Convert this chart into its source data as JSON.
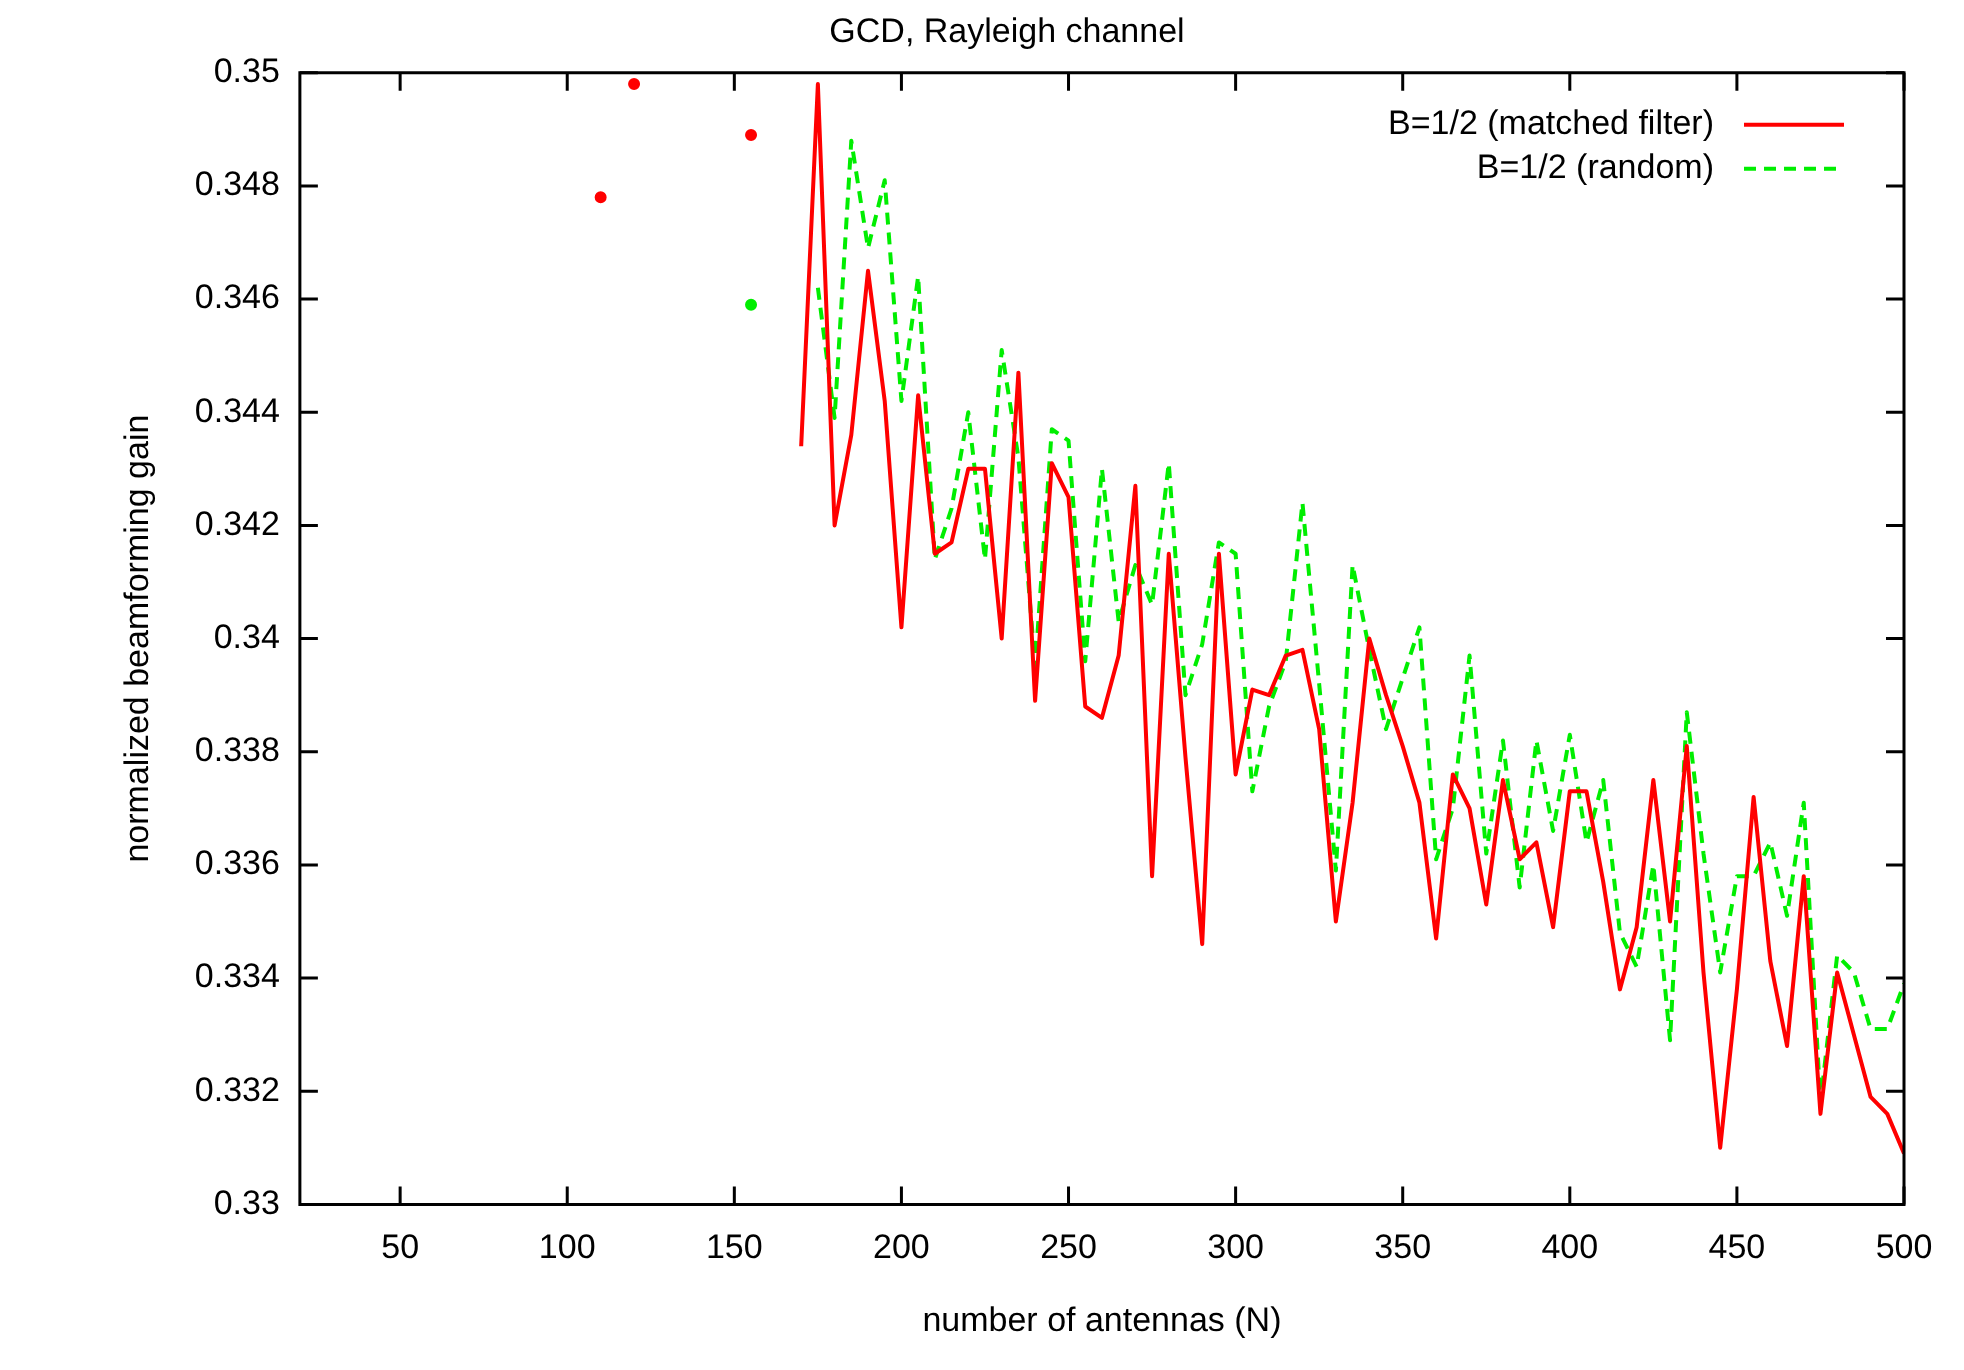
{
  "chart_data": {
    "type": "line",
    "title": "GCD, Rayleigh channel",
    "xlabel": "number of antennas (N)",
    "ylabel": "normalized beamforming gain",
    "xlim": [
      20,
      500
    ],
    "xticks": [
      50,
      100,
      150,
      200,
      250,
      300,
      350,
      400,
      450,
      500
    ],
    "ylim": [
      0.33,
      0.35
    ],
    "yticks": [
      0.33,
      0.332,
      0.334,
      0.336,
      0.338,
      0.34,
      0.342,
      0.344,
      0.346,
      0.348,
      0.35
    ],
    "grid": false,
    "legend": "top right",
    "marker": "none",
    "series": [
      {
        "name": "B=1/2 (matched filter)",
        "color": "#ff0000",
        "line_style": "solid",
        "x": [
          110,
          115,
          120,
          125,
          130,
          135,
          140,
          145,
          150,
          155,
          160,
          165,
          170,
          175,
          180,
          185,
          190,
          195,
          200,
          205,
          210,
          215,
          220,
          225,
          230,
          235,
          240,
          245,
          250,
          255,
          260,
          265,
          270,
          275,
          280,
          285,
          290,
          295,
          300,
          305,
          310,
          315,
          320,
          325,
          330,
          335,
          340,
          345,
          350,
          355,
          360,
          365,
          370,
          375,
          380,
          385,
          390,
          395,
          400,
          405,
          410,
          415,
          420,
          425,
          430,
          435,
          440,
          445,
          450,
          455,
          460,
          465,
          470,
          475,
          480,
          485,
          490,
          495,
          500
        ],
        "values": [
          0.3478,
          null,
          0.3498,
          null,
          null,
          null,
          null,
          null,
          null,
          0.3489,
          null,
          null,
          0.3434,
          0.3498,
          0.342,
          0.3436,
          0.3465,
          0.3442,
          0.3402,
          0.3443,
          0.3415,
          0.3417,
          0.343,
          0.343,
          0.34,
          0.3447,
          0.3389,
          0.3431,
          0.3425,
          0.3388,
          0.3386,
          0.3397,
          0.3427,
          0.3358,
          0.3415,
          0.3379,
          0.3346,
          0.3415,
          0.3376,
          0.3391,
          0.339,
          0.3397,
          0.3398,
          0.3384,
          0.335,
          0.3371,
          0.34,
          0.339,
          0.3381,
          0.3371,
          0.3347,
          0.3376,
          0.337,
          0.3353,
          0.3375,
          0.3361,
          0.3364,
          0.3349,
          0.3373,
          0.3373,
          0.3357,
          0.3338,
          0.3349,
          0.3375,
          0.335,
          0.3381,
          0.3341,
          0.331,
          0.3338,
          0.3372,
          0.3343,
          0.3328,
          0.3358,
          0.3316,
          0.3341,
          0.333,
          0.3319,
          0.3316,
          0.3309
        ]
      },
      {
        "name": "B=1/2 (random)",
        "color": "#00ee00",
        "line_style": "dashed",
        "x": [
          155,
          160,
          165,
          170,
          175,
          180,
          185,
          190,
          195,
          200,
          205,
          210,
          215,
          220,
          225,
          230,
          235,
          240,
          245,
          250,
          255,
          260,
          265,
          270,
          275,
          280,
          285,
          290,
          295,
          300,
          305,
          310,
          315,
          320,
          325,
          330,
          335,
          340,
          345,
          350,
          355,
          360,
          365,
          370,
          375,
          380,
          385,
          390,
          395,
          400,
          405,
          410,
          415,
          420,
          425,
          430,
          435,
          440,
          445,
          450,
          455,
          460,
          465,
          470,
          475,
          480,
          485,
          490,
          495,
          500
        ],
        "values": [
          0.3459,
          null,
          null,
          null,
          0.3462,
          0.3439,
          0.3488,
          0.3469,
          0.3481,
          0.3442,
          0.3464,
          0.3414,
          0.3423,
          0.344,
          0.3414,
          0.3451,
          0.3432,
          0.3395,
          0.3437,
          0.3435,
          0.3396,
          0.343,
          0.3403,
          0.3413,
          0.3406,
          0.3431,
          0.339,
          0.3399,
          0.3417,
          0.3415,
          0.3373,
          0.3388,
          0.3396,
          0.3424,
          0.3392,
          0.3359,
          0.3413,
          0.3398,
          0.3384,
          0.3393,
          0.3402,
          0.3361,
          0.337,
          0.3397,
          0.3362,
          0.3382,
          0.3356,
          0.3382,
          0.3366,
          0.3383,
          0.3364,
          0.3375,
          0.3348,
          0.3342,
          0.336,
          0.3329,
          0.3387,
          0.3362,
          0.3341,
          0.3358,
          0.3358,
          0.3364,
          0.3351,
          0.3371,
          0.3318,
          0.3344,
          0.3341,
          0.3331,
          0.3331,
          0.3339
        ]
      }
    ]
  }
}
